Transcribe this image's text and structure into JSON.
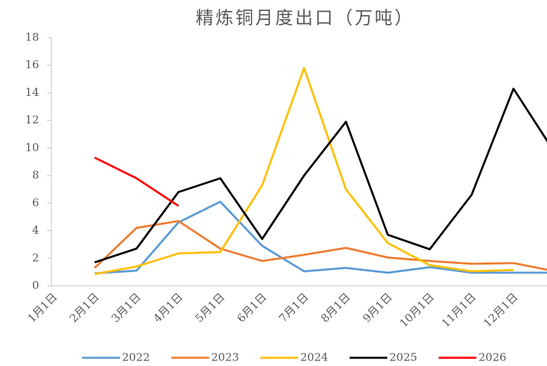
{
  "chart_data": {
    "type": "line",
    "title": "精炼铜月度出口（万吨）",
    "categories": [
      "1月1日",
      "2月1日",
      "3月1日",
      "4月1日",
      "5月1日",
      "6月1日",
      "7月1日",
      "8月1日",
      "9月1日",
      "10月1日",
      "11月1日",
      "12月1日",
      null
    ],
    "series": [
      {
        "name": "2022",
        "color": "#5b9bd5",
        "values": [
          null,
          0.9,
          1.1,
          4.6,
          6.1,
          2.9,
          1.05,
          1.3,
          0.95,
          1.35,
          0.95,
          0.95,
          0.95
        ]
      },
      {
        "name": "2023",
        "color": "#ed7d31",
        "values": [
          null,
          1.3,
          4.2,
          4.7,
          2.7,
          1.8,
          2.25,
          2.75,
          2.05,
          1.8,
          1.6,
          1.65,
          1.05
        ]
      },
      {
        "name": "2024",
        "color": "#ffc000",
        "values": [
          null,
          0.85,
          1.4,
          2.35,
          2.45,
          7.3,
          15.8,
          7.0,
          3.1,
          1.5,
          1.05,
          1.15,
          null
        ]
      },
      {
        "name": "2025",
        "color": "#000000",
        "values": [
          null,
          1.7,
          2.7,
          6.8,
          7.8,
          3.4,
          8.0,
          11.9,
          3.7,
          2.65,
          6.6,
          14.3,
          9.6
        ]
      },
      {
        "name": "2026",
        "color": "#ff0000",
        "values": [
          null,
          9.3,
          7.8,
          5.8,
          null,
          null,
          null,
          null,
          null,
          null,
          null,
          null,
          null
        ]
      }
    ],
    "ylim": [
      0,
      18
    ],
    "yticks": [
      0,
      2,
      4,
      6,
      8,
      10,
      12,
      14,
      16,
      18
    ],
    "legend": "bottom"
  }
}
